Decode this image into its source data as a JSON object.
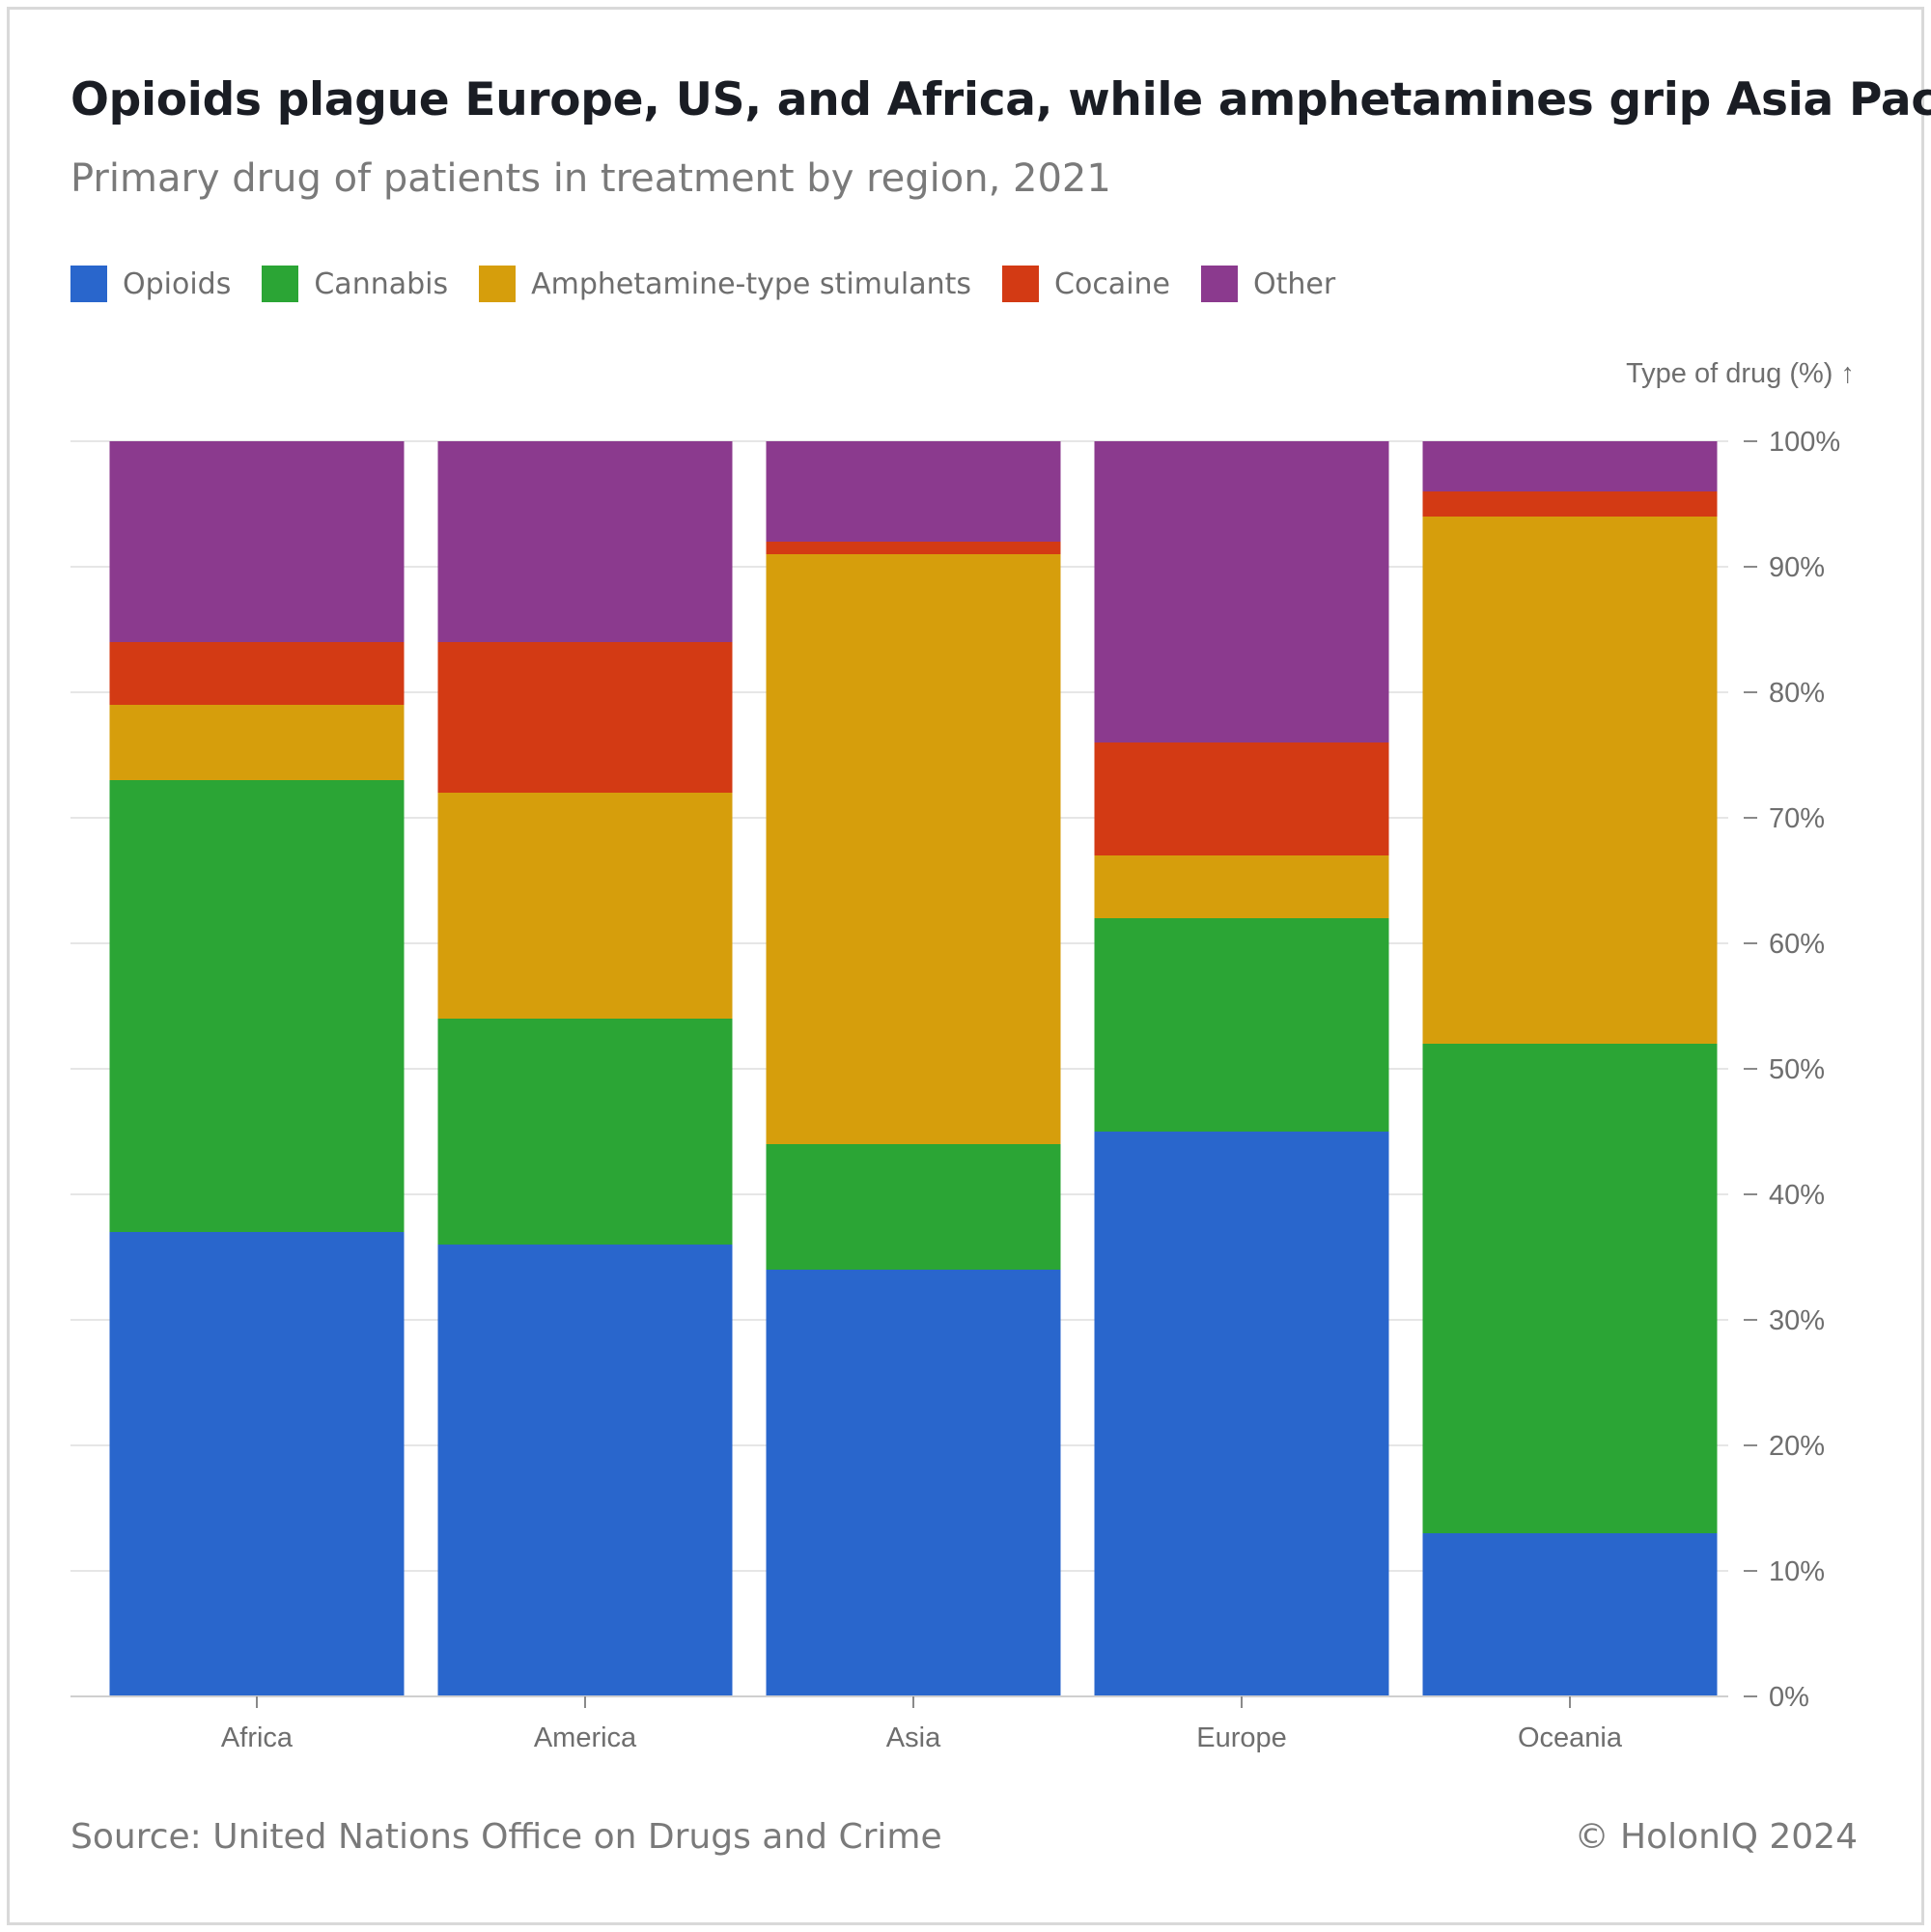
{
  "header": {
    "title": "Opioids plague Europe, US, and Africa, while amphetamines grip Asia Pacific",
    "subtitle": "Primary drug of patients in treatment by region, 2021"
  },
  "footer": {
    "source": "Source: United Nations Office on Drugs and Crime",
    "copyright": "© HolonIQ 2024"
  },
  "chart_data": {
    "type": "bar",
    "stacked": true,
    "title": "Opioids plague Europe, US, and Africa, while amphetamines grip Asia Pacific",
    "subtitle": "Primary drug of patients in treatment by region, 2021",
    "xlabel": "",
    "ylabel": "Type of drug (%) ↑",
    "ylim": [
      0,
      100
    ],
    "yticks": [
      0,
      10,
      20,
      30,
      40,
      50,
      60,
      70,
      80,
      90,
      100
    ],
    "ytick_labels": [
      "0%",
      "10%",
      "20%",
      "30%",
      "40%",
      "50%",
      "60%",
      "70%",
      "80%",
      "90%",
      "100%"
    ],
    "grid": true,
    "y_axis_position": "right",
    "legend_position": "top-left",
    "categories": [
      "Africa",
      "America",
      "Asia",
      "Europe",
      "Oceania"
    ],
    "series": [
      {
        "name": "Opioids",
        "color": "#2966cc",
        "values": [
          37,
          36,
          34,
          45,
          13
        ]
      },
      {
        "name": "Cannabis",
        "color": "#2ba535",
        "values": [
          36,
          18,
          10,
          17,
          39
        ]
      },
      {
        "name": "Amphetamine-type stimulants",
        "color": "#d69e0c",
        "values": [
          6,
          18,
          47,
          5,
          42
        ]
      },
      {
        "name": "Cocaine",
        "color": "#d33a14",
        "values": [
          5,
          12,
          1,
          9,
          2
        ]
      },
      {
        "name": "Other",
        "color": "#8b3a8e",
        "values": [
          16,
          16,
          8,
          24,
          4
        ]
      }
    ]
  }
}
